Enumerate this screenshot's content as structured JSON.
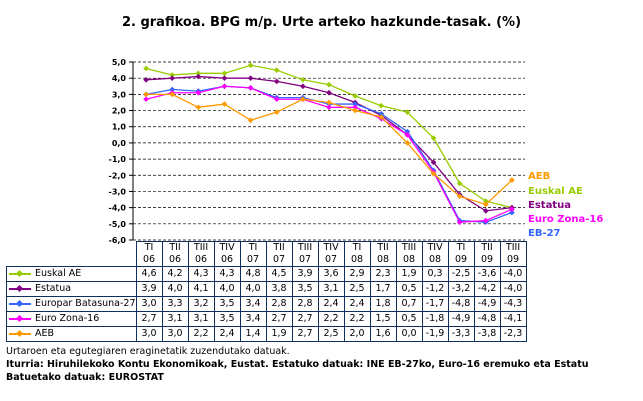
{
  "chart_data": {
    "type": "line",
    "title": "2. grafikoa. BPG m/p. Urte arteko hazkunde-tasak. (%)",
    "categories": [
      [
        "TI",
        "06"
      ],
      [
        "TII",
        "06"
      ],
      [
        "TIII",
        "06"
      ],
      [
        "TIV",
        "06"
      ],
      [
        "TI",
        "07"
      ],
      [
        "TII",
        "07"
      ],
      [
        "TIII",
        "07"
      ],
      [
        "TIV",
        "07"
      ],
      [
        "TI",
        "08"
      ],
      [
        "TII",
        "08"
      ],
      [
        "TIII",
        "08"
      ],
      [
        "TIV",
        "08"
      ],
      [
        "TI",
        "09"
      ],
      [
        "TII",
        "09"
      ],
      [
        "TIII",
        "09"
      ]
    ],
    "ylim": [
      -6,
      5
    ],
    "yticks": [
      "5,0",
      "4,0",
      "3,0",
      "2,0",
      "1,0",
      "0,0",
      "-1,0",
      "-2,0",
      "-3,0",
      "-4,0",
      "-5,0",
      "-6,0"
    ],
    "grid": true,
    "series": [
      {
        "name": "Euskal AE",
        "color": "#99cc00",
        "values": [
          4.6,
          4.2,
          4.3,
          4.3,
          4.8,
          4.5,
          3.9,
          3.6,
          2.9,
          2.3,
          1.9,
          0.3,
          -2.5,
          -3.6,
          -4.0
        ],
        "labels": [
          "4,6",
          "4,2",
          "4,3",
          "4,3",
          "4,8",
          "4,5",
          "3,9",
          "3,6",
          "2,9",
          "2,3",
          "1,9",
          "0,3",
          "-2,5",
          "-3,6",
          "-4,0"
        ]
      },
      {
        "name": "Estatua",
        "color": "#800080",
        "values": [
          3.9,
          4.0,
          4.1,
          4.0,
          4.0,
          3.8,
          3.5,
          3.1,
          2.5,
          1.7,
          0.5,
          -1.2,
          -3.2,
          -4.2,
          -4.0
        ],
        "labels": [
          "3,9",
          "4,0",
          "4,1",
          "4,0",
          "4,0",
          "3,8",
          "3,5",
          "3,1",
          "2,5",
          "1,7",
          "0,5",
          "-1,2",
          "-3,2",
          "-4,2",
          "-4,0"
        ]
      },
      {
        "name": "Europar Batasuna-27",
        "short": "EB-27",
        "color": "#3366ff",
        "values": [
          3.0,
          3.3,
          3.2,
          3.5,
          3.4,
          2.8,
          2.8,
          2.4,
          2.4,
          1.8,
          0.7,
          -1.7,
          -4.8,
          -4.9,
          -4.3
        ],
        "labels": [
          "3,0",
          "3,3",
          "3,2",
          "3,5",
          "3,4",
          "2,8",
          "2,8",
          "2,4",
          "2,4",
          "1,8",
          "0,7",
          "-1,7",
          "-4,8",
          "-4,9",
          "-4,3"
        ]
      },
      {
        "name": "Euro Zona-16",
        "short": "Euro Zona-16",
        "color": "#ff00ff",
        "values": [
          2.7,
          3.1,
          3.1,
          3.5,
          3.4,
          2.7,
          2.7,
          2.2,
          2.2,
          1.5,
          0.5,
          -1.8,
          -4.9,
          -4.8,
          -4.1
        ],
        "labels": [
          "2,7",
          "3,1",
          "3,1",
          "3,5",
          "3,4",
          "2,7",
          "2,7",
          "2,2",
          "2,2",
          "1,5",
          "0,5",
          "-1,8",
          "-4,9",
          "-4,8",
          "-4,1"
        ]
      },
      {
        "name": "AEB",
        "color": "#ff9900",
        "values": [
          3.0,
          3.0,
          2.2,
          2.4,
          1.4,
          1.9,
          2.7,
          2.5,
          2.0,
          1.6,
          0.0,
          -1.9,
          -3.3,
          -3.8,
          -2.3
        ],
        "labels": [
          "3,0",
          "3,0",
          "2,2",
          "2,4",
          "1,4",
          "1,9",
          "2,7",
          "2,5",
          "2,0",
          "1,6",
          "0,0",
          "-1,9",
          "-3,3",
          "-3,8",
          "-2,3"
        ]
      }
    ],
    "end_labels": [
      "AEB",
      "Euskal AE",
      "Estatua",
      "Euro Zona-16",
      "EB-27"
    ]
  },
  "footer": {
    "note": "Urtaroen eta egutegiaren eraginetatik zuzendutako datuak.",
    "source1": "Iturria: Hiruhilekoko Kontu Ekonomikoak, Eustat. Estatuko datuak: INE  EB-27ko, Euro-16 eremuko eta Estatu",
    "source2": "Batuetako datuak: EUROSTAT"
  }
}
